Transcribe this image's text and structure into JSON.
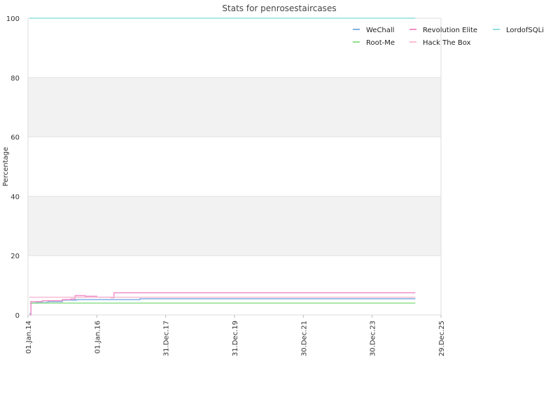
{
  "chart_data": {
    "type": "line",
    "title": "Stats for penrosestaircases",
    "xlabel": "",
    "ylabel": "Percentage",
    "ylim": [
      0,
      100
    ],
    "yticks": [
      0,
      20,
      40,
      60,
      80,
      100
    ],
    "xlim": [
      "2014-01-01",
      "2025-12-29"
    ],
    "xticks": [
      "01.Jan.14",
      "01.Jan.16",
      "31.Dec.17",
      "31.Dec.19",
      "30.Dec.21",
      "30.Dec.23",
      "29.Dec.25"
    ],
    "xtick_dates": [
      "2014-01-01",
      "2016-01-01",
      "2017-12-31",
      "2019-12-31",
      "2021-12-30",
      "2023-12-30",
      "2025-12-29"
    ],
    "grid": true,
    "alternating_bands": true,
    "legend_position": "top-right",
    "series": [
      {
        "name": "WeChall",
        "color": "#7fb2e5",
        "points": [
          [
            "2014-01-15",
            0.5
          ],
          [
            "2014-02-01",
            4.0
          ],
          [
            "2014-04-01",
            4.2
          ],
          [
            "2014-08-01",
            4.5
          ],
          [
            "2015-01-01",
            5.0
          ],
          [
            "2015-06-01",
            5.2
          ],
          [
            "2017-03-01",
            5.2
          ],
          [
            "2017-04-01",
            5.5
          ],
          [
            "2025-04-01",
            5.5
          ]
        ]
      },
      {
        "name": "Root-Me",
        "color": "#8fe08f",
        "points": [
          [
            "2014-01-20",
            4.0
          ],
          [
            "2025-04-01",
            4.0
          ]
        ]
      },
      {
        "name": "Revolution Elite",
        "color": "#ee90c8",
        "points": [
          [
            "2014-01-20",
            0.0
          ],
          [
            "2014-02-01",
            4.5
          ],
          [
            "2014-06-01",
            4.8
          ],
          [
            "2015-01-01",
            5.2
          ],
          [
            "2015-04-01",
            5.4
          ],
          [
            "2015-05-15",
            6.5
          ],
          [
            "2015-09-01",
            6.3
          ],
          [
            "2016-01-01",
            6.0
          ],
          [
            "2016-06-01",
            5.8
          ],
          [
            "2016-07-01",
            7.5
          ],
          [
            "2025-04-01",
            7.5
          ]
        ]
      },
      {
        "name": "Hack The Box",
        "color": "#f8bcd4",
        "points": [
          [
            "2014-01-15",
            6.0
          ],
          [
            "2025-04-01",
            6.0
          ]
        ]
      },
      {
        "name": "LordofSQLi",
        "color": "#8ee0dc",
        "points": [
          [
            "2014-01-15",
            100
          ],
          [
            "2025-04-01",
            100
          ]
        ]
      }
    ]
  }
}
